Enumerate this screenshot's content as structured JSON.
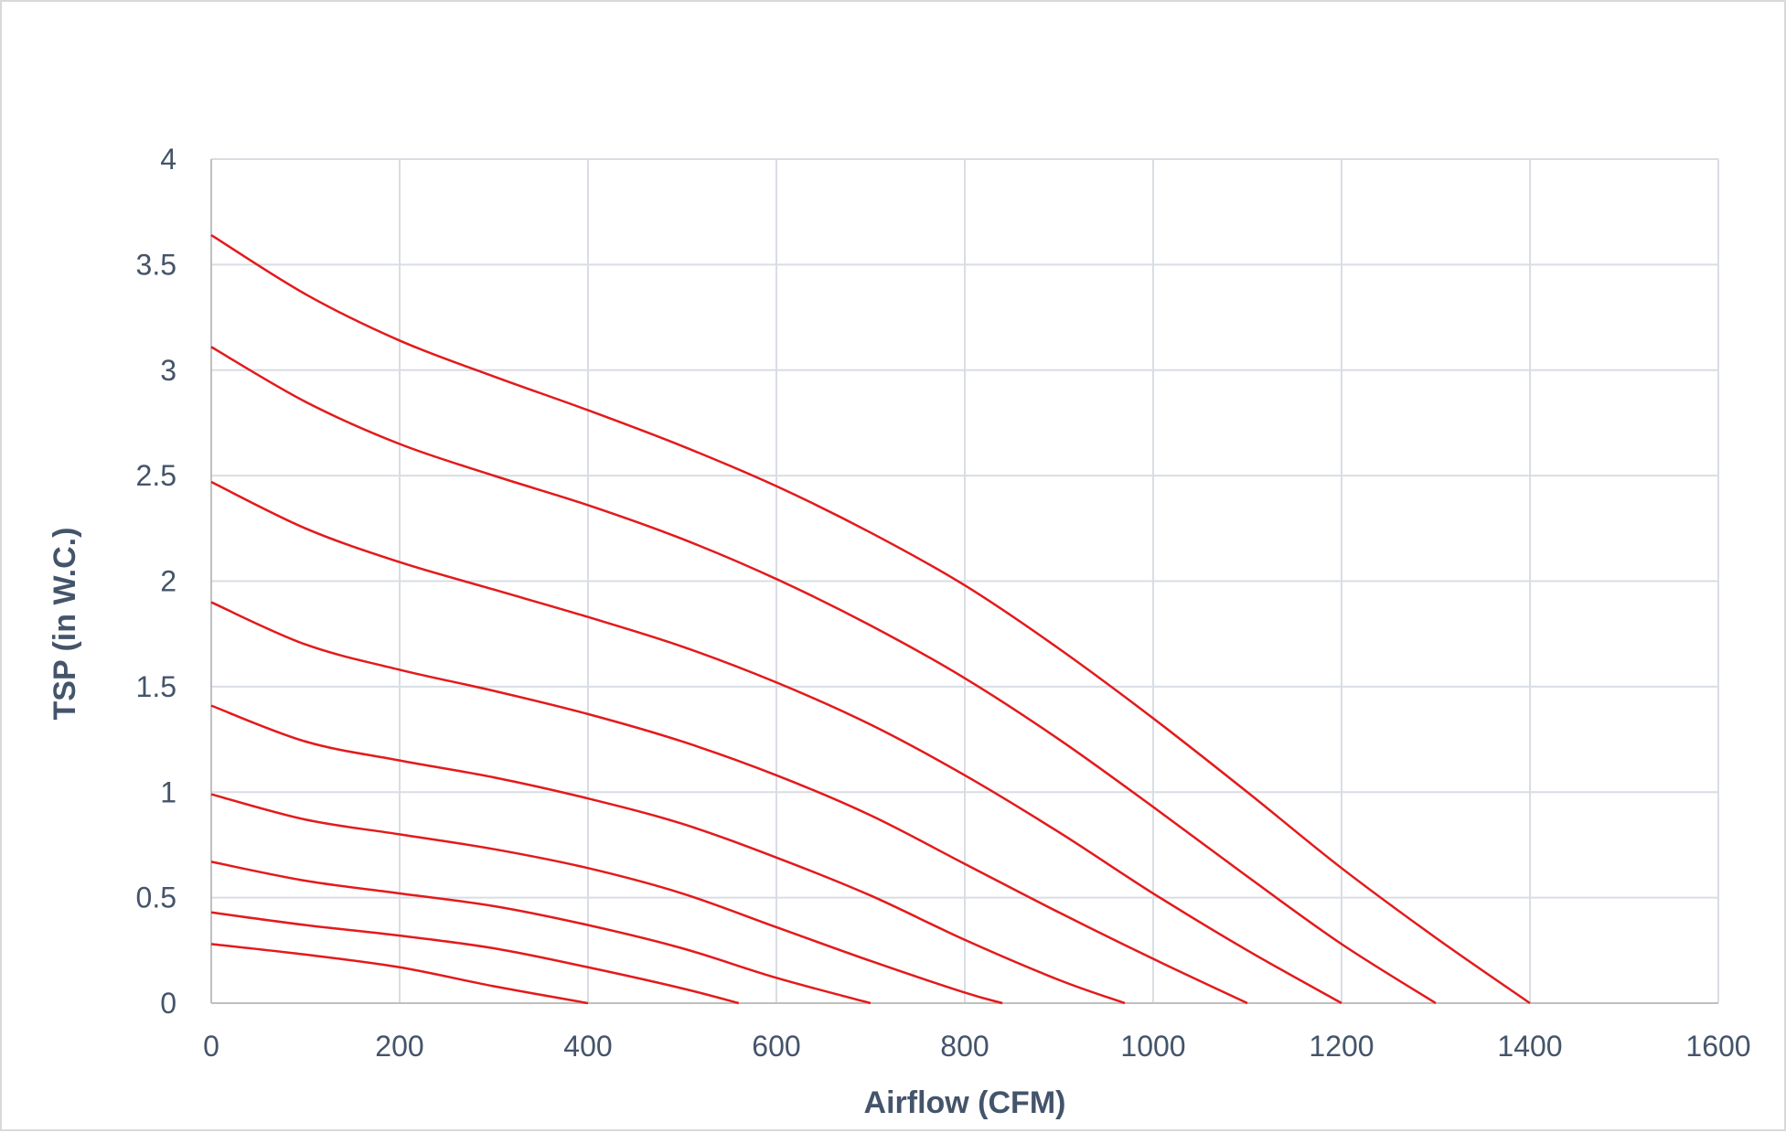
{
  "chart_data": {
    "type": "line",
    "title": "",
    "xlabel": "Airflow (CFM)",
    "ylabel": "TSP (in W.C.)",
    "xlim": [
      0,
      1600
    ],
    "ylim": [
      0,
      4
    ],
    "x_ticks": [
      "0",
      "200",
      "400",
      "600",
      "800",
      "1000",
      "1200",
      "1400",
      "1600"
    ],
    "y_ticks": [
      "0",
      "0.5",
      "1",
      "1.5",
      "2",
      "2.5",
      "3",
      "3.5",
      "4"
    ],
    "grid": true,
    "legend": "none",
    "colors": {
      "line": "#e31a1c",
      "grid": "#d9dde4",
      "axis": "#bfbfbf",
      "text": "#44546a"
    },
    "series": [
      {
        "x": [
          0,
          100,
          200,
          300,
          400,
          500,
          600,
          700,
          800,
          900,
          1000,
          1100,
          1200,
          1300,
          1400
        ],
        "y": [
          3.64,
          3.36,
          3.14,
          2.97,
          2.81,
          2.64,
          2.45,
          2.23,
          1.98,
          1.68,
          1.35,
          1.0,
          0.64,
          0.31,
          0.0
        ]
      },
      {
        "x": [
          0,
          100,
          200,
          300,
          400,
          500,
          600,
          700,
          800,
          900,
          1000,
          1100,
          1200,
          1300
        ],
        "y": [
          3.11,
          2.85,
          2.65,
          2.5,
          2.36,
          2.2,
          2.01,
          1.79,
          1.54,
          1.25,
          0.93,
          0.6,
          0.28,
          0.0
        ]
      },
      {
        "x": [
          0,
          100,
          200,
          300,
          400,
          500,
          600,
          700,
          800,
          900,
          1000,
          1100,
          1200
        ],
        "y": [
          2.47,
          2.25,
          2.09,
          1.96,
          1.83,
          1.69,
          1.52,
          1.32,
          1.08,
          0.81,
          0.52,
          0.25,
          0.0
        ]
      },
      {
        "x": [
          0,
          100,
          200,
          300,
          400,
          500,
          600,
          700,
          800,
          900,
          1000,
          1100
        ],
        "y": [
          1.9,
          1.7,
          1.58,
          1.48,
          1.37,
          1.24,
          1.08,
          0.89,
          0.66,
          0.43,
          0.21,
          0.0
        ]
      },
      {
        "x": [
          0,
          100,
          200,
          300,
          400,
          500,
          600,
          700,
          800,
          900,
          970
        ],
        "y": [
          1.41,
          1.24,
          1.15,
          1.07,
          0.97,
          0.85,
          0.69,
          0.51,
          0.3,
          0.11,
          0.0
        ]
      },
      {
        "x": [
          0,
          100,
          200,
          300,
          400,
          500,
          600,
          700,
          800,
          840
        ],
        "y": [
          0.99,
          0.87,
          0.8,
          0.73,
          0.64,
          0.52,
          0.36,
          0.2,
          0.05,
          0.0
        ]
      },
      {
        "x": [
          0,
          100,
          200,
          300,
          400,
          500,
          600,
          700
        ],
        "y": [
          0.67,
          0.58,
          0.52,
          0.46,
          0.37,
          0.26,
          0.12,
          0.0
        ]
      },
      {
        "x": [
          0,
          100,
          200,
          300,
          400,
          500,
          560
        ],
        "y": [
          0.43,
          0.37,
          0.32,
          0.26,
          0.17,
          0.07,
          0.0
        ]
      },
      {
        "x": [
          0,
          100,
          200,
          300,
          400
        ],
        "y": [
          0.28,
          0.23,
          0.17,
          0.08,
          0.0
        ]
      }
    ]
  }
}
